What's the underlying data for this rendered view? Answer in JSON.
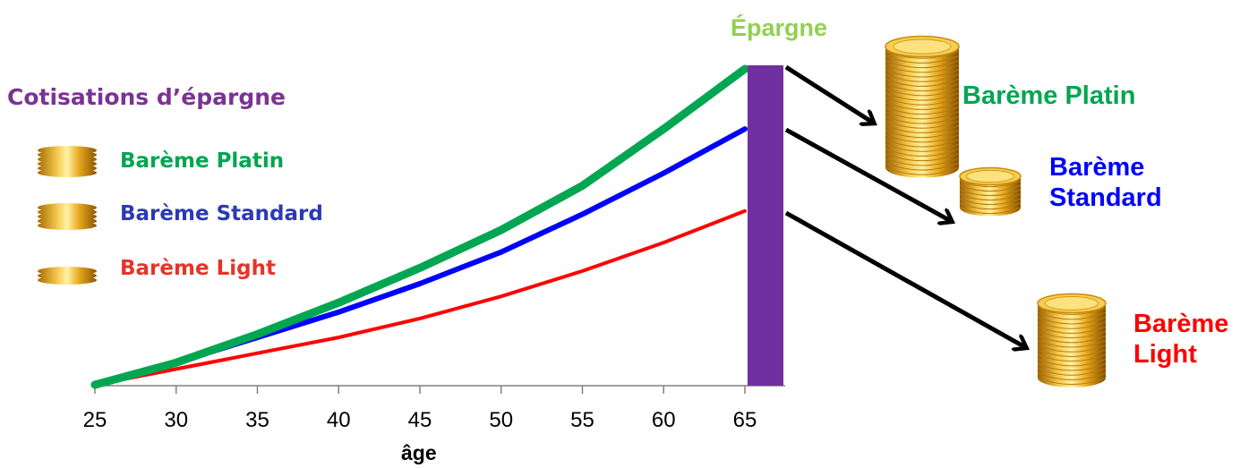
{
  "chart_data": {
    "type": "line",
    "xlabel": "âge",
    "x_ticks": [
      25,
      30,
      35,
      40,
      45,
      50,
      55,
      60,
      65
    ],
    "xlim": [
      25,
      65
    ],
    "ylim": [
      0,
      1
    ],
    "y_axis_shown": false,
    "grid": false,
    "series": [
      {
        "name": "Barème Platin",
        "color": "#00a651",
        "x": [
          25,
          30,
          35,
          40,
          45,
          50,
          55,
          60,
          65
        ],
        "values": [
          0,
          0.07,
          0.16,
          0.26,
          0.37,
          0.49,
          0.63,
          0.81,
          1.0
        ]
      },
      {
        "name": "Barème Standard",
        "color": "#0000ff",
        "x": [
          25,
          30,
          35,
          40,
          45,
          50,
          55,
          60,
          65
        ],
        "values": [
          0,
          0.07,
          0.15,
          0.23,
          0.32,
          0.42,
          0.54,
          0.67,
          0.81
        ]
      },
      {
        "name": "Barème Light",
        "color": "#ff0000",
        "x": [
          25,
          30,
          35,
          40,
          45,
          50,
          55,
          60,
          65
        ],
        "values": [
          0,
          0.05,
          0.1,
          0.15,
          0.21,
          0.28,
          0.36,
          0.45,
          0.55
        ]
      }
    ],
    "annotation": "Épargne"
  },
  "legend": {
    "title": "Cotisations d’épargne",
    "items": [
      {
        "label": "Barème Platin",
        "color": "#00a651",
        "icon": "coin-stack-icon"
      },
      {
        "label": "Barème Standard",
        "color": "#2a3ab5",
        "icon": "coin-stack-icon"
      },
      {
        "label": "Barème Light",
        "color": "#e6332a",
        "icon": "coin-stack-icon"
      }
    ]
  },
  "epargne_label": "Épargne",
  "epargne_color": "#92d050",
  "bar_color": "#7030a0",
  "outcomes": [
    {
      "line1": "Barème Platin",
      "line2": "",
      "color": "#00a651"
    },
    {
      "line1": "Barème",
      "line2": "Standard",
      "color": "#0000ff"
    },
    {
      "line1": "Barème",
      "line2": "Light",
      "color": "#ff0000"
    }
  ]
}
